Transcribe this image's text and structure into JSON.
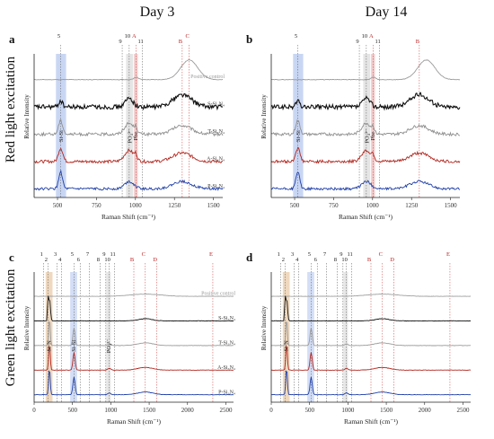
{
  "titles": {
    "left": "Day 3",
    "right": "Day 14",
    "row_top": "Red light excitation",
    "row_bottom": "Green light excitation"
  },
  "chart_data": [
    {
      "id": "a",
      "letter": "a",
      "type": "line",
      "xlabel": "Raman Shift (cm⁻¹)",
      "ylabel": "Relative Intensity",
      "xlim": [
        350,
        1560
      ],
      "xticks": [
        500,
        750,
        1000,
        1250,
        1500
      ],
      "peaks": [
        {
          "label": "5",
          "x": 520,
          "style": "number"
        },
        {
          "label": "9",
          "x": 915,
          "style": "number"
        },
        {
          "label": "10",
          "x": 960,
          "style": "number"
        },
        {
          "label": "11",
          "x": 1045,
          "style": "number"
        },
        {
          "label": "A",
          "x": 1003,
          "style": "boxed"
        },
        {
          "label": "B",
          "x": 1300,
          "style": "boxed"
        },
        {
          "label": "C",
          "x": 1345,
          "style": "boxed"
        }
      ],
      "bands": [
        {
          "label": "Si-Si",
          "x0": 490,
          "x1": 555,
          "color": "#9db5ea"
        },
        {
          "label": "PO₄³⁻",
          "x0": 940,
          "x1": 985,
          "color": "#cfcfcf"
        },
        {
          "label": "Phe",
          "x0": 990,
          "x1": 1015,
          "color": "#e7a6a6"
        }
      ],
      "series": [
        {
          "name": "Positive control",
          "color": "#9a9a9a",
          "kind": "positive"
        },
        {
          "name": "S-Si₃N₄",
          "color": "#111111",
          "kind": "noisy"
        },
        {
          "name": "T-Si₃N₄",
          "color": "#8f8f8f",
          "kind": "mid"
        },
        {
          "name": "A-Si₃N₄",
          "color": "#b3261e",
          "kind": "mid"
        },
        {
          "name": "P-Si₃N₄",
          "color": "#1f3fa8",
          "kind": "low"
        }
      ]
    },
    {
      "id": "b",
      "letter": "b",
      "type": "line",
      "xlabel": "Raman Shift (cm⁻¹)",
      "ylabel": "Relative Intensity",
      "xlim": [
        350,
        1560
      ],
      "xticks": [
        500,
        750,
        1000,
        1250,
        1500
      ],
      "peaks": [
        {
          "label": "5",
          "x": 520,
          "style": "number"
        },
        {
          "label": "9",
          "x": 915,
          "style": "number"
        },
        {
          "label": "10",
          "x": 960,
          "style": "number"
        },
        {
          "label": "11",
          "x": 1045,
          "style": "number"
        },
        {
          "label": "A",
          "x": 1003,
          "style": "boxed"
        },
        {
          "label": "B",
          "x": 1300,
          "style": "boxed"
        }
      ],
      "bands": [
        {
          "label": "Si-Si",
          "x0": 490,
          "x1": 555,
          "color": "#9db5ea"
        },
        {
          "label": "PO₄³⁻",
          "x0": 940,
          "x1": 985,
          "color": "#cfcfcf"
        },
        {
          "label": "Phe",
          "x0": 990,
          "x1": 1015,
          "color": "#e7a6a6"
        }
      ],
      "series": [
        {
          "name": "",
          "color": "#9a9a9a",
          "kind": "positive"
        },
        {
          "name": "",
          "color": "#111111",
          "kind": "noisy"
        },
        {
          "name": "",
          "color": "#8f8f8f",
          "kind": "mid"
        },
        {
          "name": "",
          "color": "#b3261e",
          "kind": "mid"
        },
        {
          "name": "",
          "color": "#1f3fa8",
          "kind": "low"
        }
      ]
    },
    {
      "id": "c",
      "letter": "c",
      "type": "line",
      "xlabel": "Raman Shift (cm⁻¹)",
      "ylabel": "Relative Intensity",
      "xlim": [
        0,
        2600
      ],
      "xticks": [
        0,
        500,
        1000,
        1500,
        2000,
        2500
      ],
      "peaks": [
        {
          "label": "1",
          "x": 120,
          "style": "number"
        },
        {
          "label": "2",
          "x": 180,
          "style": "number"
        },
        {
          "label": "3",
          "x": 300,
          "style": "number"
        },
        {
          "label": "4",
          "x": 360,
          "style": "number"
        },
        {
          "label": "5",
          "x": 520,
          "style": "number"
        },
        {
          "label": "6",
          "x": 600,
          "style": "number"
        },
        {
          "label": "7",
          "x": 720,
          "style": "number"
        },
        {
          "label": "8",
          "x": 860,
          "style": "number"
        },
        {
          "label": "9",
          "x": 935,
          "style": "number"
        },
        {
          "label": "10",
          "x": 980,
          "style": "number"
        },
        {
          "label": "11",
          "x": 1050,
          "style": "number"
        },
        {
          "label": "B",
          "x": 1300,
          "style": "boxed"
        },
        {
          "label": "C",
          "x": 1450,
          "style": "boxed"
        },
        {
          "label": "D",
          "x": 1600,
          "style": "boxed"
        },
        {
          "label": "E",
          "x": 2330,
          "style": "boxed"
        }
      ],
      "bands": [
        {
          "label": "Si-N",
          "x0": 150,
          "x1": 240,
          "color": "#e0b88a"
        },
        {
          "label": "Si-Si",
          "x0": 470,
          "x1": 560,
          "color": "#aec3ee"
        },
        {
          "label": "PO₄³⁻",
          "x0": 940,
          "x1": 1000,
          "color": "#d4d4d4"
        }
      ],
      "series": [
        {
          "name": "Positive control",
          "color": "#a0a0a0",
          "kind": "gpos"
        },
        {
          "name": "S-Si₃N₄",
          "color": "#111111",
          "kind": "gsharp"
        },
        {
          "name": "T-Si₃N₄",
          "color": "#9a9a9a",
          "kind": "gflat"
        },
        {
          "name": "A-Si₃N₄",
          "color": "#b3261e",
          "kind": "gflat"
        },
        {
          "name": "P-Si₃N₄",
          "color": "#1f3fa8",
          "kind": "gflat"
        }
      ]
    },
    {
      "id": "d",
      "letter": "d",
      "type": "line",
      "xlabel": "Raman Shift (cm⁻¹)",
      "ylabel": "Relative Intensity",
      "xlim": [
        0,
        2600
      ],
      "xticks": [
        0,
        500,
        1000,
        1500,
        2000,
        2500
      ],
      "peaks": [
        {
          "label": "1",
          "x": 120,
          "style": "number"
        },
        {
          "label": "2",
          "x": 180,
          "style": "number"
        },
        {
          "label": "3",
          "x": 300,
          "style": "number"
        },
        {
          "label": "4",
          "x": 360,
          "style": "number"
        },
        {
          "label": "5",
          "x": 520,
          "style": "number"
        },
        {
          "label": "6",
          "x": 600,
          "style": "number"
        },
        {
          "label": "7",
          "x": 720,
          "style": "number"
        },
        {
          "label": "8",
          "x": 860,
          "style": "number"
        },
        {
          "label": "9",
          "x": 935,
          "style": "number"
        },
        {
          "label": "10",
          "x": 980,
          "style": "number"
        },
        {
          "label": "11",
          "x": 1050,
          "style": "number"
        },
        {
          "label": "B",
          "x": 1300,
          "style": "boxed"
        },
        {
          "label": "C",
          "x": 1450,
          "style": "boxed"
        },
        {
          "label": "D",
          "x": 1600,
          "style": "boxed"
        },
        {
          "label": "E",
          "x": 2330,
          "style": "boxed"
        }
      ],
      "bands": [
        {
          "label": "Si-N",
          "x0": 150,
          "x1": 240,
          "color": "#e0b88a"
        },
        {
          "label": "",
          "x0": 470,
          "x1": 560,
          "color": "#aec3ee"
        },
        {
          "label": "",
          "x0": 940,
          "x1": 1000,
          "color": "#d4d4d4"
        }
      ],
      "series": [
        {
          "name": "",
          "color": "#a0a0a0",
          "kind": "gpos"
        },
        {
          "name": "",
          "color": "#111111",
          "kind": "gsharp"
        },
        {
          "name": "",
          "color": "#9a9a9a",
          "kind": "gflat"
        },
        {
          "name": "",
          "color": "#b3261e",
          "kind": "gflat"
        },
        {
          "name": "",
          "color": "#1f3fa8",
          "kind": "gflat"
        }
      ]
    }
  ]
}
